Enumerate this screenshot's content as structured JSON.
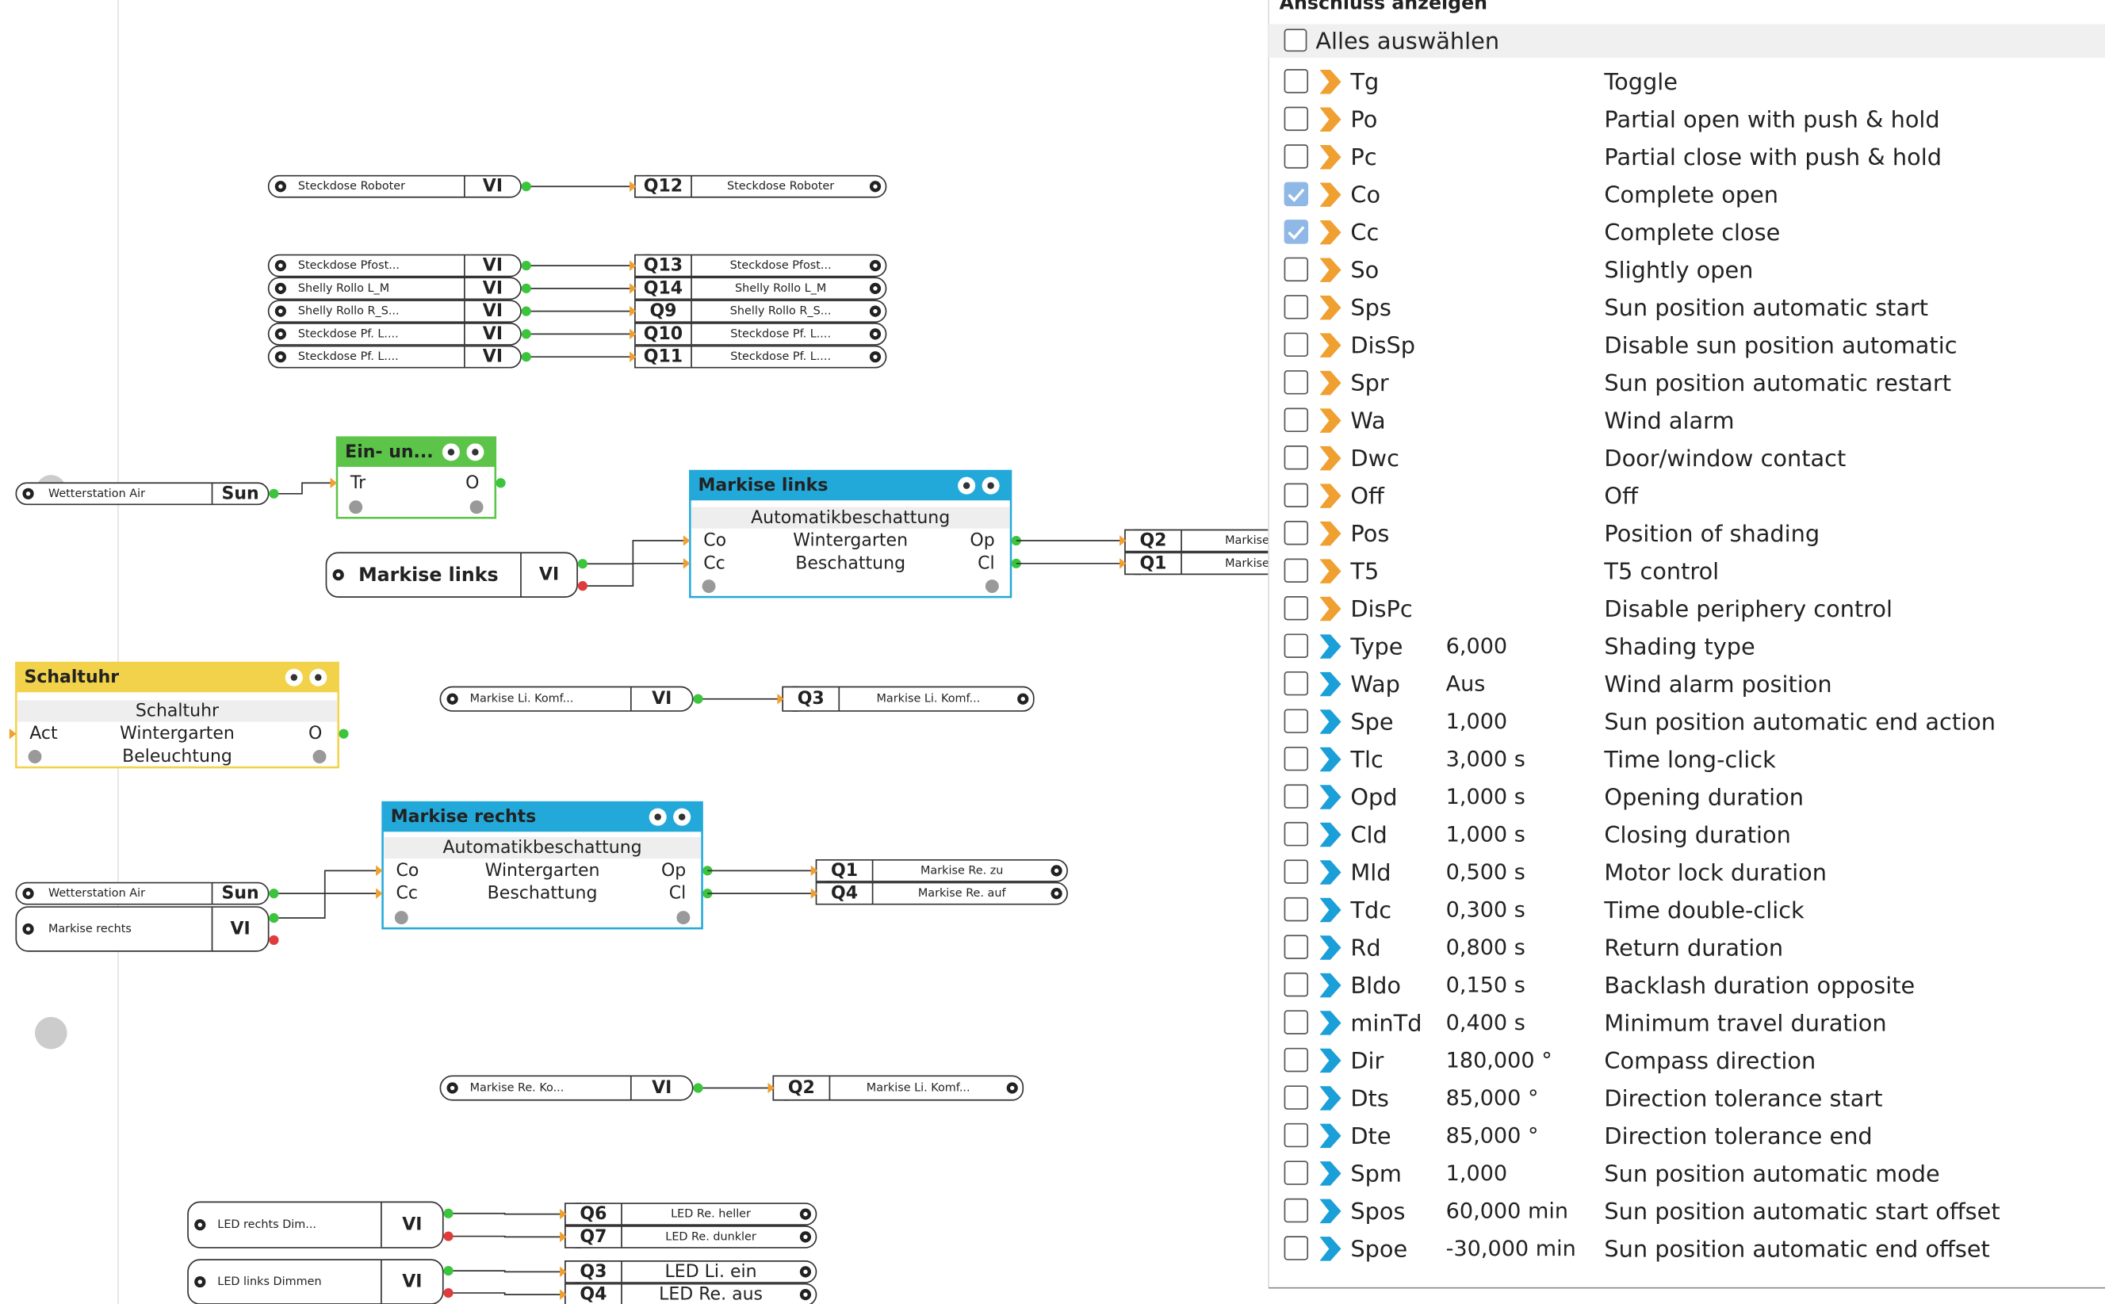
{
  "canvas": {
    "connections": [
      {
        "input": "Steckdose Roboter",
        "port": "VI",
        "outputs": [
          {
            "q": "Q12",
            "label": "Steckdose Roboter"
          }
        ]
      },
      {
        "input": "Steckdose Pfost...",
        "port": "VI",
        "outputs": [
          {
            "q": "Q13",
            "label": "Steckdose Pfost..."
          }
        ]
      },
      {
        "input": "Shelly Rollo L_M",
        "port": "VI",
        "outputs": [
          {
            "q": "Q14",
            "label": "Shelly Rollo L_M"
          }
        ]
      },
      {
        "input": "Shelly Rollo R_S...",
        "port": "VI",
        "outputs": [
          {
            "q": "Q9",
            "label": "Shelly Rollo R_S..."
          }
        ]
      },
      {
        "input": "Steckdose Pf. L....",
        "port": "VI",
        "outputs": [
          {
            "q": "Q10",
            "label": "Steckdose Pf. L...."
          }
        ]
      },
      {
        "input": "Steckdose Pf. L....",
        "port": "VI",
        "outputs": [
          {
            "q": "Q11",
            "label": "Steckdose Pf. L...."
          }
        ]
      },
      {
        "input": "Markise Li. Komf...",
        "port": "VI",
        "outputs": [
          {
            "q": "Q3",
            "label": "Markise Li. Komf..."
          }
        ]
      },
      {
        "input": "Markise Re. Ko...",
        "port": "VI",
        "outputs": [
          {
            "q": "Q2",
            "label": "Markise Li. Komf..."
          }
        ]
      },
      {
        "input": "LED rechts Dim...",
        "port": "VI",
        "outputs": [
          {
            "q": "Q6",
            "label": "LED Re. heller"
          },
          {
            "q": "Q7",
            "label": "LED Re. dunkler"
          }
        ]
      },
      {
        "input": "LED links Dimmen",
        "port": "VI",
        "outputs": [
          {
            "q": "Q3",
            "label": "LED Li. ein"
          },
          {
            "q": "Q4",
            "label": "LED Re. aus"
          }
        ]
      }
    ],
    "blocks": [
      {
        "title": "Ein- un...",
        "inputs": [
          "Tr"
        ],
        "outputs": [
          "O"
        ],
        "sources": [
          {
            "input": "Wetterstation Air",
            "port": "Sun"
          }
        ]
      },
      {
        "title": "Markise links",
        "subtitle": "Automatikbeschattung",
        "inputs": [
          "Co",
          "Cc"
        ],
        "center": [
          "Wintergarten",
          "Beschattung"
        ],
        "outputs": [
          "Op",
          "Cl"
        ],
        "sources": [
          {
            "input": "Markise links",
            "port": "VI"
          }
        ],
        "targets": [
          {
            "q": "Q2",
            "label": "Markise"
          },
          {
            "q": "Q1",
            "label": "Markise"
          }
        ]
      },
      {
        "title": "Schaltuhr",
        "subtitle": "Schaltuhr",
        "inputs": [
          "Act"
        ],
        "center": [
          "Wintergarten",
          "Beleuchtung"
        ],
        "outputs": [
          "O"
        ]
      },
      {
        "title": "Markise rechts",
        "subtitle": "Automatikbeschattung",
        "inputs": [
          "Co",
          "Cc"
        ],
        "center": [
          "Wintergarten",
          "Beschattung"
        ],
        "outputs": [
          "Op",
          "Cl"
        ],
        "sources": [
          {
            "input": "Wetterstation Air",
            "port": "Sun"
          },
          {
            "input": "Markise rechts",
            "port": "VI"
          }
        ],
        "targets": [
          {
            "q": "Q1",
            "label": "Markise Re. zu"
          },
          {
            "q": "Q4",
            "label": "Markise Re. auf"
          }
        ]
      }
    ]
  },
  "panel": {
    "header": "Anschluss anzeigen",
    "select_all": "Alles auswählen",
    "rows": [
      {
        "checked": false,
        "color": "#f0a030",
        "abbr": "Tg",
        "description": "Toggle"
      },
      {
        "checked": false,
        "color": "#f0a030",
        "abbr": "Po",
        "description": "Partial open with push & hold"
      },
      {
        "checked": false,
        "color": "#f0a030",
        "abbr": "Pc",
        "description": "Partial close with push & hold"
      },
      {
        "checked": true,
        "color": "#f0a030",
        "abbr": "Co",
        "description": "Complete open"
      },
      {
        "checked": true,
        "color": "#f0a030",
        "abbr": "Cc",
        "description": "Complete close"
      },
      {
        "checked": false,
        "color": "#f0a030",
        "abbr": "So",
        "description": "Slightly open"
      },
      {
        "checked": false,
        "color": "#f0a030",
        "abbr": "Sps",
        "description": "Sun position automatic start"
      },
      {
        "checked": false,
        "color": "#f0a030",
        "abbr": "DisSp",
        "description": "Disable sun position automatic"
      },
      {
        "checked": false,
        "color": "#f0a030",
        "abbr": "Spr",
        "description": "Sun position automatic restart"
      },
      {
        "checked": false,
        "color": "#f0a030",
        "abbr": "Wa",
        "description": "Wind alarm"
      },
      {
        "checked": false,
        "color": "#f0a030",
        "abbr": "Dwc",
        "description": "Door/window contact"
      },
      {
        "checked": false,
        "color": "#f0a030",
        "abbr": "Off",
        "description": "Off"
      },
      {
        "checked": false,
        "color": "#f0a030",
        "abbr": "Pos",
        "description": "Position of shading"
      },
      {
        "checked": false,
        "color": "#f0a030",
        "abbr": "T5",
        "description": "T5 control"
      },
      {
        "checked": false,
        "color": "#f0a030",
        "abbr": "DisPc",
        "description": "Disable periphery control"
      },
      {
        "checked": false,
        "color": "#1a9fd8",
        "abbr": "Type",
        "value": "6,000",
        "description": "Shading type"
      },
      {
        "checked": false,
        "color": "#1a9fd8",
        "abbr": "Wap",
        "value": "Aus",
        "description": "Wind alarm position"
      },
      {
        "checked": false,
        "color": "#1a9fd8",
        "abbr": "Spe",
        "value": "1,000",
        "description": "Sun position automatic end action"
      },
      {
        "checked": false,
        "color": "#1a9fd8",
        "abbr": "Tlc",
        "value": "3,000 s",
        "description": "Time long-click"
      },
      {
        "checked": false,
        "color": "#1a9fd8",
        "abbr": "Opd",
        "value": "1,000 s",
        "description": "Opening duration"
      },
      {
        "checked": false,
        "color": "#1a9fd8",
        "abbr": "Cld",
        "value": "1,000 s",
        "description": "Closing duration"
      },
      {
        "checked": false,
        "color": "#1a9fd8",
        "abbr": "Mld",
        "value": "0,500 s",
        "description": "Motor lock duration"
      },
      {
        "checked": false,
        "color": "#1a9fd8",
        "abbr": "Tdc",
        "value": "0,300 s",
        "description": "Time double-click"
      },
      {
        "checked": false,
        "color": "#1a9fd8",
        "abbr": "Rd",
        "value": "0,800 s",
        "description": "Return duration"
      },
      {
        "checked": false,
        "color": "#1a9fd8",
        "abbr": "Bldo",
        "value": "0,150 s",
        "description": "Backlash duration opposite"
      },
      {
        "checked": false,
        "color": "#1a9fd8",
        "abbr": "minTd",
        "value": "0,400 s",
        "description": "Minimum travel duration"
      },
      {
        "checked": false,
        "color": "#1a9fd8",
        "abbr": "Dir",
        "value": "180,000 °",
        "description": "Compass direction"
      },
      {
        "checked": false,
        "color": "#1a9fd8",
        "abbr": "Dts",
        "value": "85,000 °",
        "description": "Direction tolerance start"
      },
      {
        "checked": false,
        "color": "#1a9fd8",
        "abbr": "Dte",
        "value": "85,000 °",
        "description": "Direction tolerance end"
      },
      {
        "checked": false,
        "color": "#1a9fd8",
        "abbr": "Spm",
        "value": "1,000",
        "description": "Sun position automatic mode"
      },
      {
        "checked": false,
        "color": "#1a9fd8",
        "abbr": "Spos",
        "value": "60,000 min",
        "description": "Sun position automatic start offset"
      },
      {
        "checked": false,
        "color": "#1a9fd8",
        "abbr": "Spoe",
        "value": "-30,000 min",
        "description": "Sun position automatic end offset"
      }
    ]
  }
}
